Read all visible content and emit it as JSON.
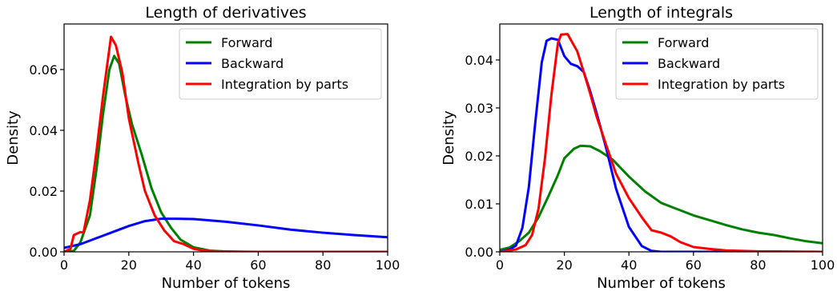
{
  "chart_data": [
    {
      "type": "line",
      "title": "Length of derivatives",
      "xlabel": "Number of tokens",
      "ylabel": "Density",
      "xlim": [
        0,
        100
      ],
      "ylim": [
        0,
        0.075
      ],
      "xticks": [
        0,
        20,
        40,
        60,
        80,
        100
      ],
      "xtick_labels": [
        "0",
        "20",
        "40",
        "60",
        "80",
        "100"
      ],
      "yticks": [
        0,
        0.02,
        0.04,
        0.06
      ],
      "ytick_labels": [
        "0.00",
        "0.02",
        "0.04",
        "0.06"
      ],
      "legend_position": "top-right",
      "grid": false,
      "series": [
        {
          "name": "Forward",
          "color": "#008000",
          "x": [
            0,
            3,
            5,
            8,
            10,
            12,
            14,
            15.5,
            17,
            19,
            21,
            24,
            27,
            30,
            33,
            36,
            40,
            45,
            50,
            60,
            100
          ],
          "y": [
            0,
            0.0003,
            0.003,
            0.012,
            0.027,
            0.045,
            0.06,
            0.0645,
            0.062,
            0.051,
            0.042,
            0.032,
            0.021,
            0.013,
            0.008,
            0.004,
            0.0015,
            0.0004,
            0.0001,
            0,
            0
          ]
        },
        {
          "name": "Backward",
          "color": "#0000ff",
          "x": [
            0,
            5,
            10,
            15,
            20,
            25,
            30,
            35,
            40,
            50,
            60,
            70,
            80,
            90,
            100
          ],
          "y": [
            0.0013,
            0.0025,
            0.0045,
            0.0065,
            0.0085,
            0.0101,
            0.0109,
            0.0109,
            0.0108,
            0.0099,
            0.0087,
            0.0073,
            0.0063,
            0.0055,
            0.0048
          ]
        },
        {
          "name": "Integration by parts",
          "color": "#ff0000",
          "x": [
            0,
            2,
            3,
            5,
            6,
            8,
            10,
            12,
            14.5,
            16,
            18,
            20,
            23,
            25,
            28,
            31,
            34,
            37,
            40,
            43,
            47,
            55,
            100
          ],
          "y": [
            0,
            0.001,
            0.0055,
            0.0065,
            0.0063,
            0.017,
            0.033,
            0.051,
            0.0708,
            0.068,
            0.059,
            0.044,
            0.029,
            0.02,
            0.012,
            0.007,
            0.0035,
            0.0025,
            0.001,
            0.0004,
            0.0002,
            0,
            0
          ]
        }
      ]
    },
    {
      "type": "line",
      "title": "Length of integrals",
      "xlabel": "Number of tokens",
      "ylabel": "Density",
      "xlim": [
        0,
        100
      ],
      "ylim": [
        0,
        0.0475
      ],
      "xticks": [
        0,
        20,
        40,
        60,
        80,
        100
      ],
      "xtick_labels": [
        "0",
        "20",
        "40",
        "60",
        "80",
        "100"
      ],
      "yticks": [
        0,
        0.01,
        0.02,
        0.03,
        0.04
      ],
      "ytick_labels": [
        "0.00",
        "0.01",
        "0.02",
        "0.03",
        "0.04"
      ],
      "legend_position": "top-right",
      "grid": false,
      "series": [
        {
          "name": "Forward",
          "color": "#008000",
          "x": [
            0,
            3,
            6,
            9,
            12,
            15,
            18,
            20,
            23,
            25,
            28,
            31,
            35,
            40,
            45,
            50,
            55,
            60,
            65,
            70,
            75,
            80,
            85,
            90,
            95,
            100
          ],
          "y": [
            0.0004,
            0.0009,
            0.0022,
            0.004,
            0.0072,
            0.0115,
            0.016,
            0.0195,
            0.0215,
            0.0221,
            0.022,
            0.021,
            0.0192,
            0.0157,
            0.0126,
            0.0102,
            0.0089,
            0.0076,
            0.0066,
            0.0056,
            0.0047,
            0.004,
            0.0035,
            0.0028,
            0.0022,
            0.0018
          ]
        },
        {
          "name": "Backward",
          "color": "#0000ff",
          "x": [
            0,
            3,
            5,
            7,
            9,
            11,
            13,
            14.5,
            16,
            18,
            20,
            22,
            24,
            26,
            28,
            30,
            33,
            36,
            40,
            44,
            47,
            50,
            55,
            100
          ],
          "y": [
            0,
            0.0005,
            0.0013,
            0.005,
            0.0135,
            0.027,
            0.0395,
            0.044,
            0.0445,
            0.0442,
            0.0408,
            0.0392,
            0.0387,
            0.0375,
            0.0335,
            0.0289,
            0.0215,
            0.0132,
            0.0052,
            0.0012,
            0.0002,
            0,
            0,
            0
          ]
        },
        {
          "name": "Integration by parts",
          "color": "#ff0000",
          "x": [
            0,
            5,
            8,
            10,
            12,
            14,
            16,
            18,
            19,
            21,
            24,
            26,
            28,
            30,
            33,
            36,
            40,
            44,
            47,
            50,
            53,
            56,
            60,
            65,
            70,
            80,
            100
          ],
          "y": [
            0,
            0.0005,
            0.0014,
            0.0035,
            0.009,
            0.0195,
            0.0328,
            0.0435,
            0.0453,
            0.0454,
            0.0418,
            0.0375,
            0.033,
            0.0282,
            0.0222,
            0.0163,
            0.0112,
            0.0072,
            0.0045,
            0.004,
            0.0032,
            0.002,
            0.001,
            0.0006,
            0.0003,
            0.0001,
            0
          ]
        }
      ]
    }
  ]
}
